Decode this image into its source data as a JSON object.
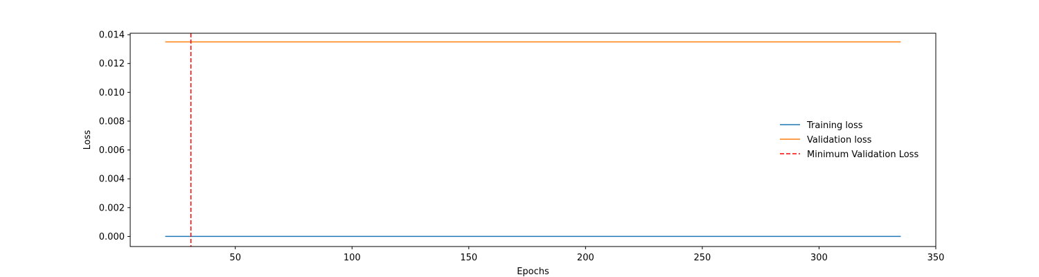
{
  "chart_data": {
    "type": "line",
    "title": "",
    "xlabel": "Epochs",
    "ylabel": "Loss",
    "xlim": [
      5,
      350
    ],
    "ylim": [
      -0.0007,
      0.0141
    ],
    "xticks": [
      50,
      100,
      150,
      200,
      250,
      300,
      350
    ],
    "yticks": [
      0.0,
      0.002,
      0.004,
      0.006,
      0.008,
      0.01,
      0.012,
      0.014
    ],
    "ytick_labels": [
      "0.000",
      "0.002",
      "0.004",
      "0.006",
      "0.008",
      "0.010",
      "0.012",
      "0.014"
    ],
    "grid": false,
    "legend_position": "center-right",
    "series": [
      {
        "name": "Training loss",
        "color": "#1f77b4",
        "style": "solid",
        "x": [
          20,
          335
        ],
        "y": [
          0.0,
          0.0
        ]
      },
      {
        "name": "Validation loss",
        "color": "#ff7f0e",
        "style": "solid",
        "x": [
          20,
          335
        ],
        "y": [
          0.0135,
          0.0135
        ]
      }
    ],
    "vlines": [
      {
        "name": "Minimum Validation Loss",
        "color": "#ff0000",
        "style": "dashed",
        "x": 31
      }
    ]
  }
}
